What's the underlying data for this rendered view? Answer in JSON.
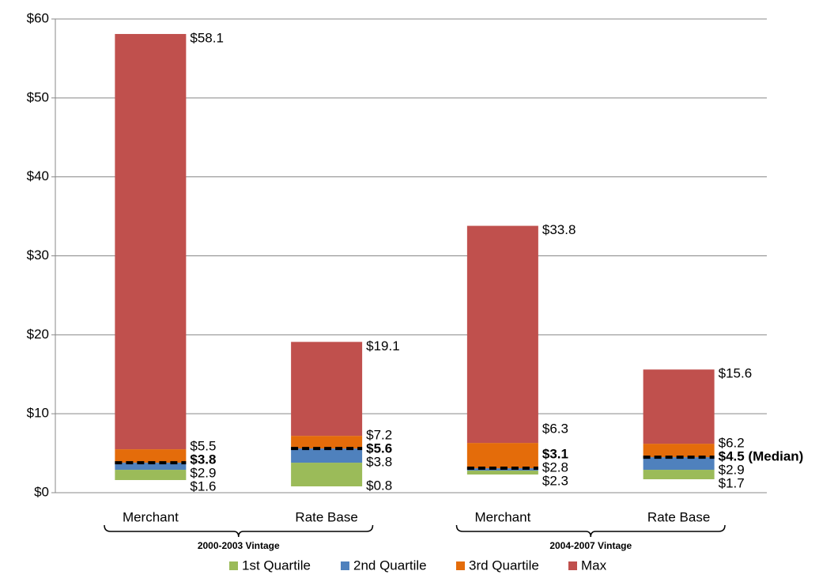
{
  "chart_data": {
    "type": "box",
    "categories": [
      "Merchant",
      "Rate Base",
      "Merchant",
      "Rate Base"
    ],
    "groups": [
      "2000-2003 Vintage",
      "2004-2007 Vintage"
    ],
    "series": [
      {
        "name": "1st Quartile",
        "color": "#9bbb59"
      },
      {
        "name": "2nd Quartile",
        "color": "#4f81bd"
      },
      {
        "name": "3rd Quartile",
        "color": "#e46c0a"
      },
      {
        "name": "Max",
        "color": "#c0504d"
      }
    ],
    "boxes": [
      {
        "min": 1.6,
        "q1": 2.9,
        "median": 3.8,
        "q3": 5.5,
        "max": 58.1,
        "value_labels": {
          "min": "$1.6",
          "q1": "$2.9",
          "median": "$3.8",
          "q3": "$5.5",
          "max": "$58.1"
        }
      },
      {
        "min": 0.8,
        "q1": 3.8,
        "median": 5.6,
        "q3": 7.2,
        "max": 19.1,
        "value_labels": {
          "min": "$0.8",
          "q1": "$3.8",
          "median": "$5.6",
          "q3": "$7.2",
          "max": "$19.1"
        }
      },
      {
        "min": 2.3,
        "q1": 2.8,
        "median": 3.1,
        "q3": 6.3,
        "max": 33.8,
        "value_labels": {
          "min": "$2.3",
          "q1": "$2.8",
          "median": "$3.1",
          "q3": "$6.3",
          "max": "$33.8"
        }
      },
      {
        "min": 1.7,
        "q1": 2.9,
        "median": 4.5,
        "q3": 6.2,
        "max": 15.6,
        "value_labels": {
          "min": "$1.7",
          "q1": "$2.9",
          "median": "$4.5 (Median)",
          "q3": "$6.2",
          "max": "$15.6"
        }
      }
    ],
    "ylim": [
      0,
      60
    ],
    "yticks": [
      {
        "value": 0,
        "label": "$0"
      },
      {
        "value": 10,
        "label": "$10"
      },
      {
        "value": 20,
        "label": "$20"
      },
      {
        "value": 30,
        "label": "$30"
      },
      {
        "value": 40,
        "label": "$40"
      },
      {
        "value": 50,
        "label": "$50"
      },
      {
        "value": 60,
        "label": "$60"
      }
    ],
    "grid": true
  }
}
